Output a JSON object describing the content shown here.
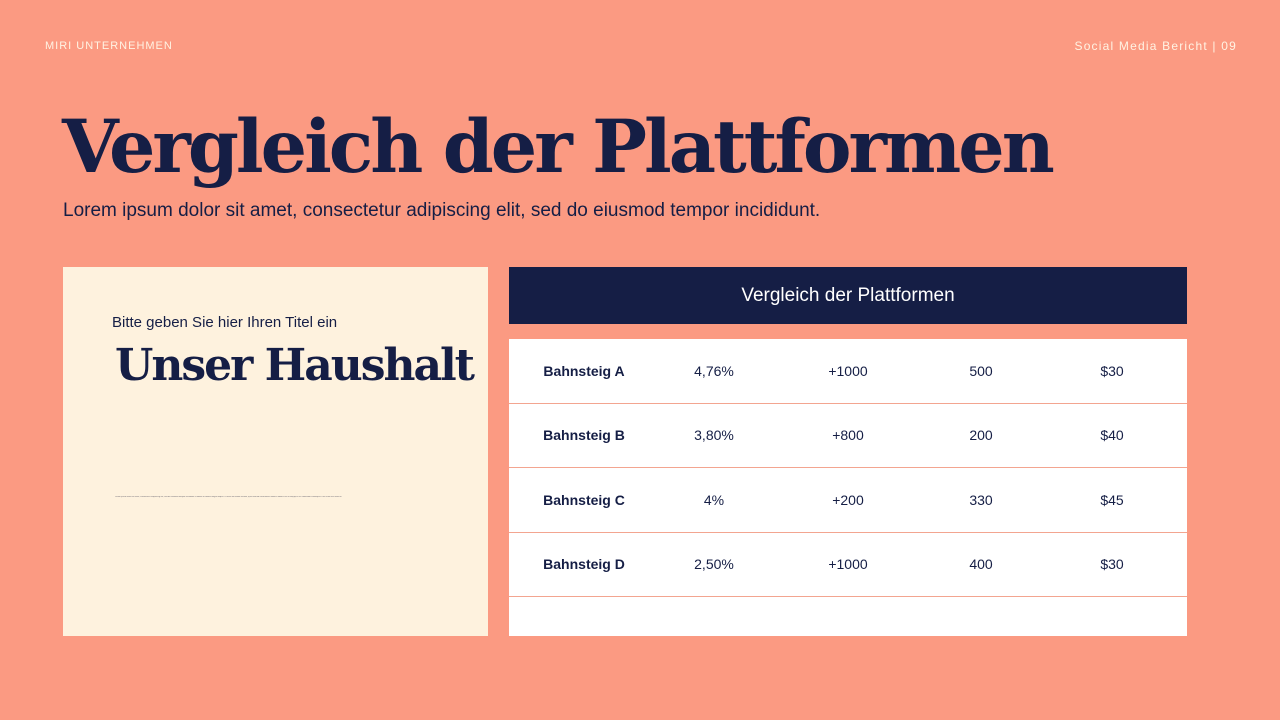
{
  "header": {
    "company": "MIRI UNTERNEHMEN",
    "report": "Social Media Bericht | 09"
  },
  "title": "Vergleich der Plattformen",
  "subtitle": "Lorem ipsum dolor sit amet, consectetur adipiscing elit, sed do eiusmod tempor incididunt.",
  "card": {
    "kicker": "Bitte geben Sie hier Ihren Titel ein",
    "heading": "Unser Haushalt",
    "small_text": "Lorem ipsum dolor sit amet, consectetur adipiscing elit, sed do eiusmod tempor incididunt ut labore et dolore magna aliqua. Ut enim ad minim veniam, quis nostrud exercitation ullamco laboris nisi ut aliquip ex ea commodo consequat. Duis aute irure dolor in"
  },
  "table": {
    "title": "Vergleich der Plattformen",
    "rows": [
      [
        "Bahnsteig A",
        "4,76%",
        "+1000",
        "500",
        "$30"
      ],
      [
        "Bahnsteig B",
        "3,80%",
        "+800",
        "200",
        "$40"
      ],
      [
        "Bahnsteig C",
        "4%",
        "+200",
        "330",
        "$45"
      ],
      [
        "Bahnsteig D",
        "2,50%",
        "+1000",
        "400",
        "$30"
      ]
    ]
  },
  "colors": {
    "background": "#fb9a82",
    "navy": "#151e45",
    "cream": "#fef2de",
    "divider": "#f3a590"
  }
}
